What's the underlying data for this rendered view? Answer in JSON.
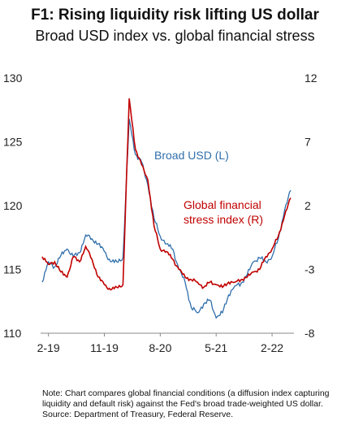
{
  "chart_data": {
    "type": "line",
    "title": "F1: Rising liquidity risk lifting US dollar",
    "subtitle": "Broad USD index vs. global financial stress",
    "x_ticks": [
      "2-19",
      "11-19",
      "8-20",
      "5-21",
      "2-22"
    ],
    "y_left": {
      "ticks": [
        "130",
        "125",
        "120",
        "115",
        "110"
      ],
      "ylim": [
        110,
        130
      ]
    },
    "y_right": {
      "ticks": [
        "12",
        "7",
        "2",
        "-3",
        "-8"
      ],
      "ylim": [
        -8,
        12
      ]
    },
    "series": [
      {
        "name": "Broad USD (L)",
        "axis": "left",
        "color": "#2f6fac",
        "points": [
          [
            "2019-01",
            114.0
          ],
          [
            "2019-02",
            115.6
          ],
          [
            "2019-03",
            115.2
          ],
          [
            "2019-04",
            116.1
          ],
          [
            "2019-05",
            116.6
          ],
          [
            "2019-06",
            116.0
          ],
          [
            "2019-07",
            116.3
          ],
          [
            "2019-08",
            117.7
          ],
          [
            "2019-09",
            117.4
          ],
          [
            "2019-10",
            117.0
          ],
          [
            "2019-11",
            116.4
          ],
          [
            "2019-12",
            115.6
          ],
          [
            "2020-01",
            115.6
          ],
          [
            "2020-02",
            115.9
          ],
          [
            "2020-03",
            126.8
          ],
          [
            "2020-04",
            124.0
          ],
          [
            "2020-05",
            123.4
          ],
          [
            "2020-06",
            121.6
          ],
          [
            "2020-07",
            119.0
          ],
          [
            "2020-08",
            117.6
          ],
          [
            "2020-09",
            117.0
          ],
          [
            "2020-10",
            116.6
          ],
          [
            "2020-11",
            115.0
          ],
          [
            "2020-12",
            114.0
          ],
          [
            "2021-01",
            112.0
          ],
          [
            "2021-02",
            111.6
          ],
          [
            "2021-03",
            112.3
          ],
          [
            "2021-04",
            112.6
          ],
          [
            "2021-05",
            111.2
          ],
          [
            "2021-06",
            111.6
          ],
          [
            "2021-07",
            113.0
          ],
          [
            "2021-08",
            113.7
          ],
          [
            "2021-09",
            113.9
          ],
          [
            "2021-10",
            114.6
          ],
          [
            "2021-11",
            115.6
          ],
          [
            "2021-12",
            115.9
          ],
          [
            "2022-01",
            115.6
          ],
          [
            "2022-02",
            116.0
          ],
          [
            "2022-03",
            117.4
          ],
          [
            "2022-04",
            119.6
          ],
          [
            "2022-05",
            121.2
          ]
        ]
      },
      {
        "name": "Global financial stress index (R)",
        "axis": "right",
        "color": "#c00000",
        "points": [
          [
            "2019-01",
            -2.0
          ],
          [
            "2019-02",
            -2.6
          ],
          [
            "2019-03",
            -2.4
          ],
          [
            "2019-04",
            -3.2
          ],
          [
            "2019-05",
            -3.6
          ],
          [
            "2019-06",
            -2.0
          ],
          [
            "2019-07",
            -2.4
          ],
          [
            "2019-08",
            -1.2
          ],
          [
            "2019-09",
            -2.2
          ],
          [
            "2019-10",
            -3.6
          ],
          [
            "2019-11",
            -4.2
          ],
          [
            "2019-12",
            -4.6
          ],
          [
            "2020-01",
            -4.4
          ],
          [
            "2020-02",
            -4.2
          ],
          [
            "2020-03",
            10.4
          ],
          [
            "2020-04",
            6.4
          ],
          [
            "2020-05",
            5.2
          ],
          [
            "2020-06",
            4.0
          ],
          [
            "2020-07",
            0.4
          ],
          [
            "2020-08",
            -1.4
          ],
          [
            "2020-09",
            -1.6
          ],
          [
            "2020-10",
            -2.2
          ],
          [
            "2020-11",
            -3.0
          ],
          [
            "2020-12",
            -3.6
          ],
          [
            "2021-01",
            -3.8
          ],
          [
            "2021-02",
            -4.0
          ],
          [
            "2021-03",
            -4.4
          ],
          [
            "2021-04",
            -4.0
          ],
          [
            "2021-05",
            -4.2
          ],
          [
            "2021-06",
            -4.4
          ],
          [
            "2021-07",
            -4.0
          ],
          [
            "2021-08",
            -4.0
          ],
          [
            "2021-09",
            -3.8
          ],
          [
            "2021-10",
            -3.6
          ],
          [
            "2021-11",
            -3.2
          ],
          [
            "2021-12",
            -3.0
          ],
          [
            "2022-01",
            -2.0
          ],
          [
            "2022-02",
            -1.4
          ],
          [
            "2022-03",
            -0.4
          ],
          [
            "2022-04",
            1.2
          ],
          [
            "2022-05",
            2.6
          ]
        ]
      }
    ],
    "annotations": {
      "usd_label": "Broad USD (L)",
      "stress_label_line1": "Global financial",
      "stress_label_line2": "stress index (R)"
    },
    "grid": false
  },
  "note_line1": "Note: Chart compares global financial conditions (a diffusion index capturing",
  "note_line2": "liquidity and default risk) against the Fed's broad trade-weighted US dollar.",
  "source": "Source: Department of Treasury, Federal Reserve."
}
